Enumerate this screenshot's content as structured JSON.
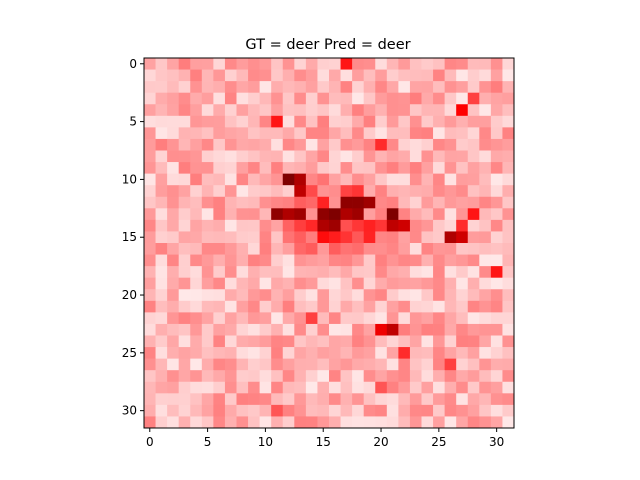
{
  "chart_data": {
    "type": "heatmap",
    "title": "GT = deer Pred = deer",
    "colormap": "Reds",
    "colors": {
      "low": "#ffffff",
      "mid": "#ff0000",
      "high": "#7f0000"
    },
    "rows": 32,
    "cols": 32,
    "x_ticks": [
      0,
      5,
      10,
      15,
      20,
      25,
      30
    ],
    "y_ticks": [
      0,
      5,
      10,
      15,
      20,
      25,
      30
    ],
    "xlim": [
      -0.5,
      31.5
    ],
    "ylim": [
      31.5,
      -0.5
    ],
    "grid": false,
    "background_level": 0.18,
    "hotspots": [
      {
        "row": 10,
        "col": 12,
        "value": 1.0
      },
      {
        "row": 10,
        "col": 13,
        "value": 0.85
      },
      {
        "row": 11,
        "col": 13,
        "value": 0.8
      },
      {
        "row": 12,
        "col": 17,
        "value": 0.95
      },
      {
        "row": 12,
        "col": 18,
        "value": 0.95
      },
      {
        "row": 12,
        "col": 19,
        "value": 0.9
      },
      {
        "row": 13,
        "col": 11,
        "value": 0.95
      },
      {
        "row": 13,
        "col": 12,
        "value": 0.85
      },
      {
        "row": 13,
        "col": 13,
        "value": 0.9
      },
      {
        "row": 13,
        "col": 15,
        "value": 0.95
      },
      {
        "row": 13,
        "col": 16,
        "value": 1.0
      },
      {
        "row": 13,
        "col": 17,
        "value": 0.85
      },
      {
        "row": 13,
        "col": 18,
        "value": 0.9
      },
      {
        "row": 13,
        "col": 21,
        "value": 1.0
      },
      {
        "row": 14,
        "col": 15,
        "value": 0.85
      },
      {
        "row": 14,
        "col": 16,
        "value": 0.9
      },
      {
        "row": 14,
        "col": 21,
        "value": 0.8
      },
      {
        "row": 14,
        "col": 22,
        "value": 0.75
      },
      {
        "row": 15,
        "col": 26,
        "value": 0.85
      },
      {
        "row": 15,
        "col": 27,
        "value": 0.75
      },
      {
        "row": 23,
        "col": 21,
        "value": 0.8
      },
      {
        "row": 23,
        "col": 20,
        "value": 0.65
      }
    ],
    "mid_region": {
      "row_from": 9,
      "row_to": 18,
      "col_from": 10,
      "col_to": 23,
      "level": 0.5
    },
    "secondary_spots": [
      {
        "row": 0,
        "col": 17,
        "value": 0.55
      },
      {
        "row": 3,
        "col": 28,
        "value": 0.45
      },
      {
        "row": 4,
        "col": 27,
        "value": 0.6
      },
      {
        "row": 5,
        "col": 11,
        "value": 0.55
      },
      {
        "row": 7,
        "col": 20,
        "value": 0.5
      },
      {
        "row": 13,
        "col": 28,
        "value": 0.55
      },
      {
        "row": 14,
        "col": 27,
        "value": 0.5
      },
      {
        "row": 18,
        "col": 30,
        "value": 0.55
      },
      {
        "row": 22,
        "col": 14,
        "value": 0.45
      },
      {
        "row": 25,
        "col": 22,
        "value": 0.5
      },
      {
        "row": 26,
        "col": 26,
        "value": 0.45
      },
      {
        "row": 28,
        "col": 20,
        "value": 0.4
      },
      {
        "row": 30,
        "col": 11,
        "value": 0.4
      }
    ]
  }
}
